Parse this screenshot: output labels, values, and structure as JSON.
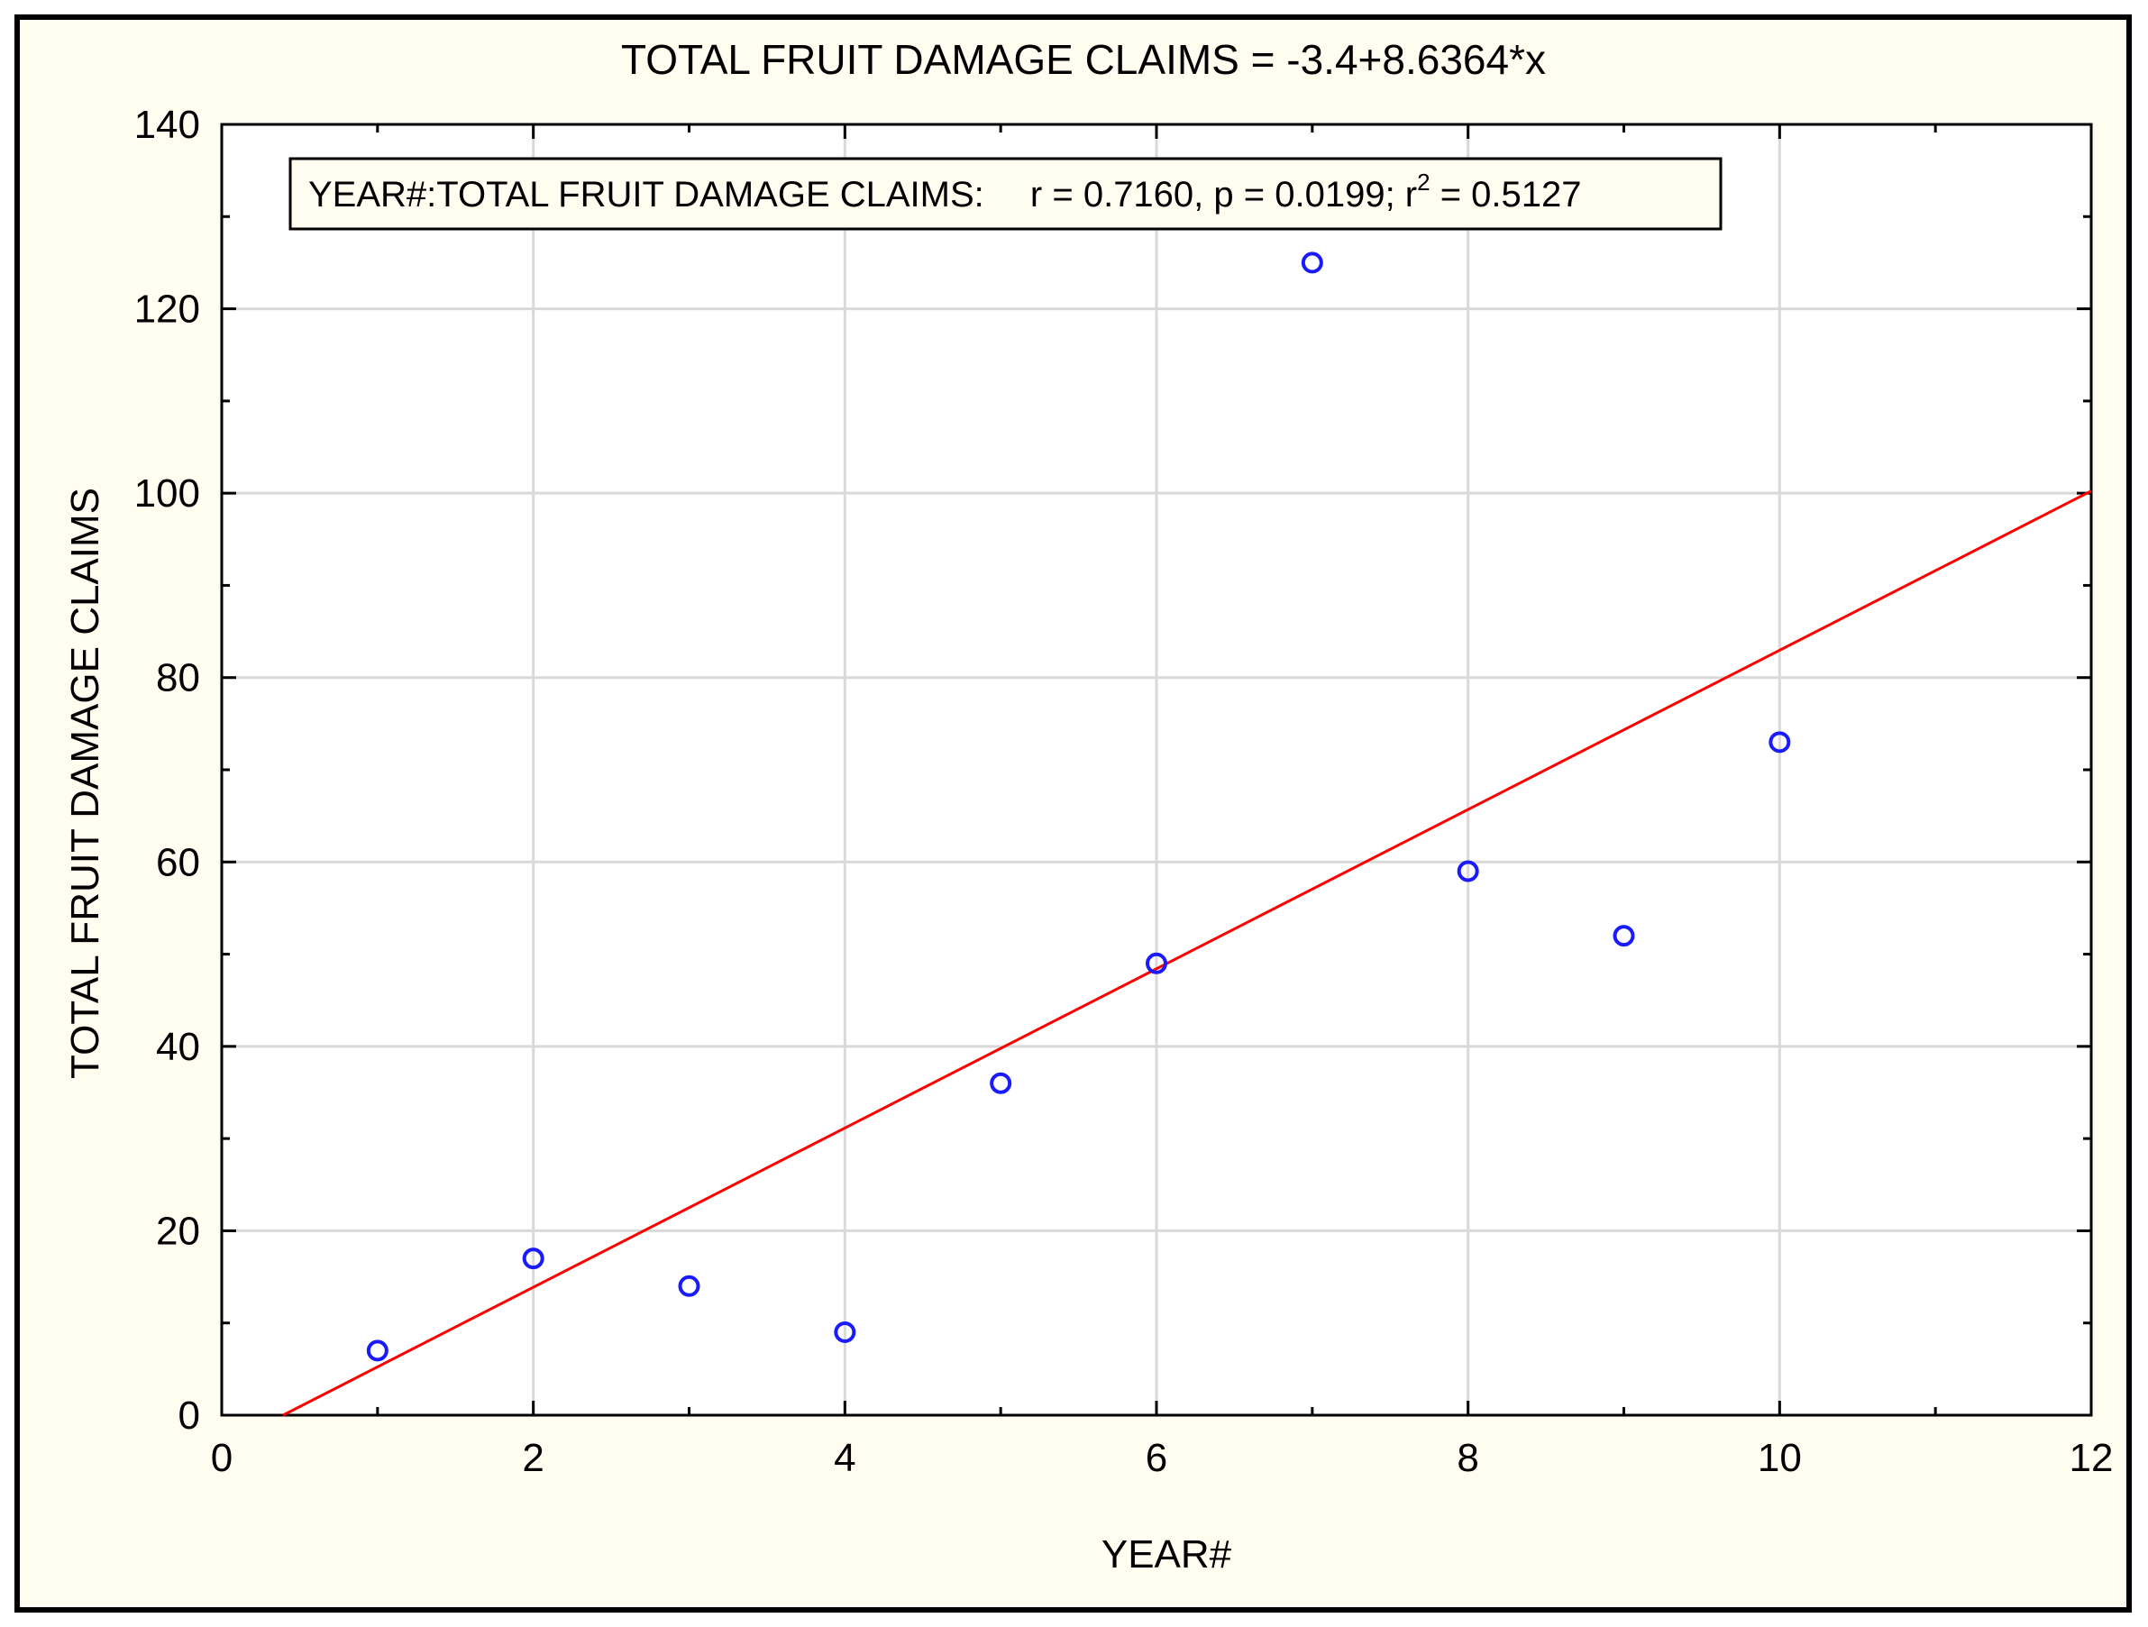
{
  "chart_data": {
    "type": "scatter",
    "title": "TOTAL FRUIT DAMAGE CLAIMS = -3.4+8.6364*x",
    "xlabel": "YEAR#",
    "ylabel": "TOTAL FRUIT DAMAGE CLAIMS",
    "xlim": [
      0,
      12
    ],
    "ylim": [
      0,
      140
    ],
    "x_ticks": [
      0,
      2,
      4,
      6,
      8,
      10,
      12
    ],
    "y_ticks": [
      0,
      20,
      40,
      60,
      80,
      100,
      120,
      140
    ],
    "grid": true,
    "series": [
      {
        "x": [
          1,
          2,
          3,
          4,
          5,
          6,
          7,
          8,
          9,
          10
        ],
        "y": [
          7,
          17,
          14,
          9,
          36,
          49,
          125,
          59,
          52,
          73
        ],
        "marker": "open-circle",
        "color": "#1a1aff"
      }
    ],
    "regression": {
      "intercept": -3.4,
      "slope": 8.6364,
      "color": "#ff0000"
    },
    "stats_box": {
      "label": "YEAR#:TOTAL FRUIT DAMAGE CLAIMS:",
      "r_text": "r = 0.7160, p = 0.0199; r",
      "r2_sup": "2",
      "r2_text": " = 0.5127"
    }
  }
}
